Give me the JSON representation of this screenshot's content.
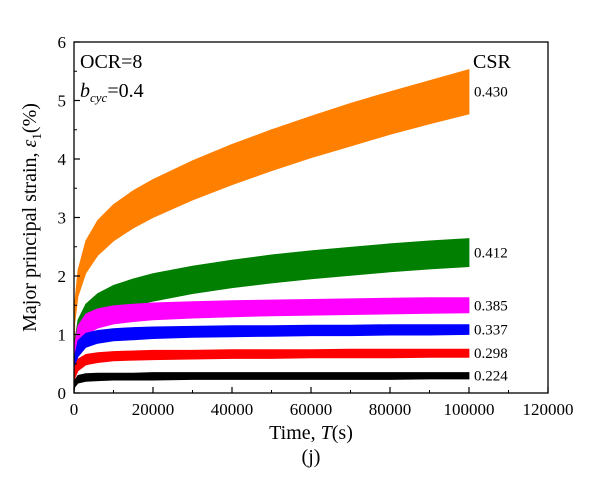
{
  "chart_data": {
    "type": "area",
    "xlabel_prefix": "Time, ",
    "xlabel_symbol": "T",
    "xlabel_suffix": "(s)",
    "ylabel_prefix": "Major principal strain, ",
    "ylabel_symbol": "ε",
    "ylabel_sub": "1",
    "ylabel_suffix": "(%)",
    "panel_label": "(j)",
    "xlim": [
      0,
      120000
    ],
    "ylim": [
      0,
      6
    ],
    "xticks": [
      "0",
      "20000",
      "40000",
      "60000",
      "80000",
      "100000",
      "120000"
    ],
    "yticks": [
      "0",
      "1",
      "2",
      "3",
      "4",
      "5",
      "6"
    ],
    "annotation": {
      "ocr": "OCR=8",
      "b_symbol": "b",
      "b_sub": "cyc",
      "b_value": "=0.4"
    },
    "legend_title": "CSR",
    "grid": false,
    "x": [
      200,
      1000,
      3000,
      6000,
      10000,
      15000,
      20000,
      30000,
      40000,
      50000,
      60000,
      70000,
      80000,
      90000,
      100000
    ],
    "series": [
      {
        "name": "0.430",
        "color": "#ff8000",
        "lower": [
          1.2,
          1.65,
          2.05,
          2.35,
          2.6,
          2.82,
          3.0,
          3.3,
          3.56,
          3.8,
          4.02,
          4.22,
          4.42,
          4.6,
          4.77
        ],
        "upper": [
          1.55,
          2.1,
          2.6,
          2.95,
          3.22,
          3.46,
          3.65,
          3.97,
          4.25,
          4.5,
          4.73,
          4.95,
          5.15,
          5.34,
          5.53
        ]
      },
      {
        "name": "0.412",
        "color": "#007f00",
        "lower": [
          0.6,
          0.85,
          1.08,
          1.25,
          1.38,
          1.49,
          1.57,
          1.7,
          1.8,
          1.88,
          1.95,
          2.01,
          2.07,
          2.12,
          2.16
        ],
        "upper": [
          0.9,
          1.25,
          1.52,
          1.7,
          1.84,
          1.95,
          2.04,
          2.17,
          2.27,
          2.36,
          2.43,
          2.49,
          2.55,
          2.6,
          2.64
        ]
      },
      {
        "name": "0.385",
        "color": "#ff00ff",
        "lower": [
          0.55,
          0.8,
          1.0,
          1.11,
          1.18,
          1.22,
          1.25,
          1.28,
          1.3,
          1.32,
          1.33,
          1.34,
          1.35,
          1.36,
          1.37
        ],
        "upper": [
          0.85,
          1.15,
          1.35,
          1.44,
          1.49,
          1.52,
          1.54,
          1.56,
          1.58,
          1.59,
          1.6,
          1.61,
          1.62,
          1.63,
          1.63
        ]
      },
      {
        "name": "0.337",
        "color": "#0000ff",
        "lower": [
          0.45,
          0.62,
          0.78,
          0.85,
          0.89,
          0.91,
          0.93,
          0.95,
          0.96,
          0.97,
          0.98,
          0.98,
          0.99,
          0.99,
          1.0
        ],
        "upper": [
          0.65,
          0.9,
          1.02,
          1.07,
          1.1,
          1.12,
          1.13,
          1.14,
          1.15,
          1.15,
          1.16,
          1.16,
          1.17,
          1.17,
          1.17
        ]
      },
      {
        "name": "0.298",
        "color": "#ff0000",
        "lower": [
          0.25,
          0.38,
          0.48,
          0.52,
          0.55,
          0.56,
          0.57,
          0.58,
          0.59,
          0.59,
          0.6,
          0.6,
          0.6,
          0.61,
          0.61
        ],
        "upper": [
          0.45,
          0.58,
          0.66,
          0.69,
          0.71,
          0.72,
          0.73,
          0.73,
          0.74,
          0.74,
          0.74,
          0.75,
          0.75,
          0.75,
          0.75
        ]
      },
      {
        "name": "0.224",
        "color": "#000000",
        "lower": [
          0.1,
          0.17,
          0.2,
          0.21,
          0.22,
          0.22,
          0.22,
          0.23,
          0.23,
          0.23,
          0.23,
          0.23,
          0.23,
          0.24,
          0.24
        ],
        "upper": [
          0.22,
          0.3,
          0.33,
          0.34,
          0.34,
          0.34,
          0.35,
          0.35,
          0.35,
          0.35,
          0.35,
          0.35,
          0.35,
          0.35,
          0.35
        ]
      }
    ]
  }
}
